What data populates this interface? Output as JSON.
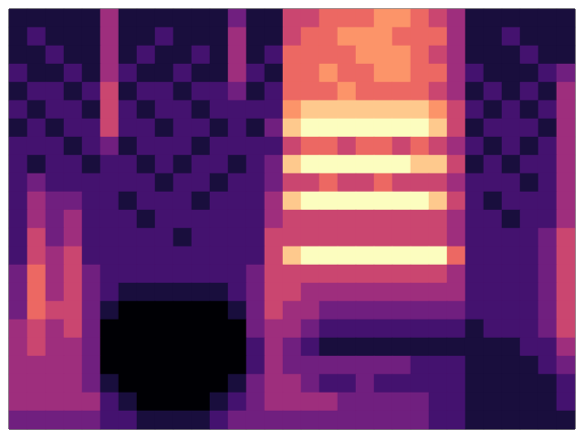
{
  "chart_data": {
    "type": "heatmap",
    "tick_labels": false,
    "zlim": [
      0,
      9
    ],
    "values": [
      [
        1,
        1,
        1,
        1,
        1,
        4,
        1,
        1,
        1,
        1,
        1,
        1,
        3,
        1,
        1,
        5,
        5,
        6,
        6,
        6,
        7,
        7,
        6,
        5,
        4,
        1,
        1,
        1,
        1,
        1,
        1
      ],
      [
        1,
        2,
        1,
        1,
        1,
        4,
        1,
        1,
        2,
        1,
        1,
        1,
        4,
        1,
        1,
        5,
        6,
        6,
        7,
        7,
        7,
        6,
        6,
        6,
        4,
        1,
        1,
        2,
        1,
        1,
        1
      ],
      [
        1,
        1,
        2,
        1,
        1,
        4,
        1,
        2,
        1,
        1,
        2,
        1,
        4,
        1,
        2,
        6,
        6,
        6,
        6,
        7,
        7,
        7,
        6,
        5,
        4,
        1,
        1,
        1,
        2,
        1,
        1
      ],
      [
        2,
        1,
        1,
        2,
        1,
        4,
        2,
        1,
        1,
        2,
        1,
        1,
        4,
        2,
        1,
        6,
        6,
        7,
        6,
        6,
        7,
        7,
        6,
        6,
        4,
        2,
        1,
        1,
        1,
        2,
        3
      ],
      [
        1,
        2,
        2,
        1,
        2,
        5,
        1,
        2,
        2,
        1,
        2,
        2,
        3,
        1,
        2,
        6,
        6,
        6,
        7,
        6,
        6,
        6,
        6,
        5,
        4,
        1,
        2,
        1,
        2,
        1,
        4
      ],
      [
        2,
        1,
        2,
        2,
        1,
        5,
        2,
        1,
        2,
        2,
        1,
        2,
        2,
        2,
        2,
        7,
        8,
        8,
        8,
        8,
        8,
        8,
        8,
        7,
        5,
        2,
        1,
        2,
        1,
        2,
        4
      ],
      [
        1,
        2,
        1,
        2,
        2,
        5,
        2,
        2,
        1,
        2,
        2,
        1,
        2,
        1,
        3,
        8,
        9,
        9,
        9,
        9,
        9,
        9,
        9,
        8,
        5,
        1,
        2,
        2,
        2,
        1,
        4
      ],
      [
        2,
        2,
        2,
        1,
        2,
        3,
        1,
        2,
        2,
        2,
        1,
        2,
        2,
        2,
        2,
        5,
        6,
        6,
        5,
        6,
        6,
        5,
        6,
        5,
        4,
        2,
        1,
        2,
        1,
        2,
        4
      ],
      [
        2,
        1,
        2,
        2,
        1,
        2,
        2,
        1,
        2,
        1,
        2,
        2,
        1,
        2,
        3,
        8,
        9,
        9,
        9,
        9,
        9,
        9,
        8,
        8,
        5,
        1,
        2,
        1,
        2,
        2,
        4
      ],
      [
        2,
        3,
        2,
        2,
        2,
        2,
        2,
        2,
        1,
        2,
        2,
        1,
        2,
        2,
        3,
        5,
        5,
        6,
        5,
        5,
        6,
        5,
        5,
        5,
        4,
        2,
        2,
        2,
        1,
        2,
        4
      ],
      [
        2,
        4,
        3,
        3,
        2,
        2,
        1,
        2,
        2,
        2,
        1,
        2,
        2,
        2,
        4,
        8,
        9,
        9,
        9,
        9,
        9,
        9,
        9,
        8,
        5,
        2,
        1,
        2,
        2,
        2,
        4
      ],
      [
        2,
        4,
        3,
        4,
        2,
        2,
        2,
        1,
        2,
        2,
        2,
        2,
        2,
        2,
        4,
        5,
        5,
        5,
        5,
        5,
        5,
        5,
        5,
        5,
        4,
        2,
        2,
        1,
        2,
        2,
        4
      ],
      [
        2,
        5,
        3,
        4,
        2,
        2,
        2,
        2,
        2,
        1,
        2,
        2,
        2,
        2,
        5,
        5,
        5,
        5,
        5,
        5,
        5,
        5,
        5,
        5,
        4,
        2,
        2,
        2,
        2,
        3,
        5
      ],
      [
        2,
        5,
        4,
        5,
        2,
        2,
        2,
        2,
        2,
        2,
        2,
        2,
        2,
        2,
        5,
        8,
        9,
        9,
        9,
        9,
        9,
        9,
        9,
        9,
        6,
        2,
        2,
        2,
        2,
        3,
        5
      ],
      [
        3,
        6,
        4,
        5,
        3,
        2,
        2,
        2,
        2,
        2,
        2,
        2,
        2,
        3,
        5,
        5,
        5,
        5,
        5,
        5,
        5,
        5,
        5,
        5,
        4,
        2,
        2,
        2,
        2,
        3,
        5
      ],
      [
        3,
        6,
        4,
        5,
        3,
        2,
        1,
        1,
        1,
        1,
        1,
        1,
        2,
        3,
        5,
        5,
        4,
        4,
        4,
        4,
        4,
        4,
        4,
        4,
        4,
        2,
        2,
        2,
        2,
        3,
        5
      ],
      [
        3,
        6,
        5,
        5,
        3,
        1,
        0,
        0,
        0,
        0,
        0,
        0,
        1,
        3,
        5,
        4,
        4,
        3,
        3,
        3,
        3,
        3,
        3,
        3,
        3,
        2,
        2,
        2,
        2,
        3,
        5
      ],
      [
        4,
        5,
        4,
        5,
        3,
        0,
        0,
        0,
        0,
        0,
        0,
        0,
        0,
        3,
        4,
        4,
        3,
        2,
        2,
        2,
        2,
        2,
        2,
        2,
        2,
        1,
        2,
        2,
        2,
        3,
        5
      ],
      [
        4,
        5,
        4,
        4,
        3,
        0,
        0,
        0,
        0,
        0,
        0,
        0,
        0,
        2,
        4,
        3,
        2,
        1,
        1,
        1,
        1,
        1,
        1,
        1,
        1,
        1,
        1,
        1,
        2,
        2,
        4
      ],
      [
        4,
        4,
        4,
        4,
        3,
        0,
        0,
        0,
        0,
        0,
        0,
        0,
        0,
        2,
        4,
        3,
        3,
        3,
        3,
        3,
        3,
        3,
        2,
        2,
        2,
        1,
        1,
        1,
        1,
        2,
        3
      ],
      [
        4,
        4,
        4,
        4,
        3,
        1,
        0,
        0,
        0,
        0,
        0,
        0,
        1,
        3,
        4,
        4,
        3,
        2,
        2,
        3,
        2,
        2,
        2,
        2,
        2,
        1,
        1,
        1,
        1,
        1,
        2
      ],
      [
        4,
        4,
        4,
        4,
        4,
        2,
        1,
        0,
        0,
        0,
        0,
        1,
        2,
        3,
        4,
        4,
        4,
        4,
        3,
        3,
        3,
        3,
        3,
        2,
        2,
        1,
        1,
        1,
        1,
        1,
        2
      ],
      [
        3,
        3,
        3,
        3,
        3,
        2,
        2,
        1,
        1,
        1,
        1,
        2,
        3,
        3,
        3,
        3,
        3,
        3,
        3,
        3,
        3,
        3,
        3,
        2,
        2,
        1,
        1,
        1,
        1,
        1,
        1
      ]
    ]
  }
}
